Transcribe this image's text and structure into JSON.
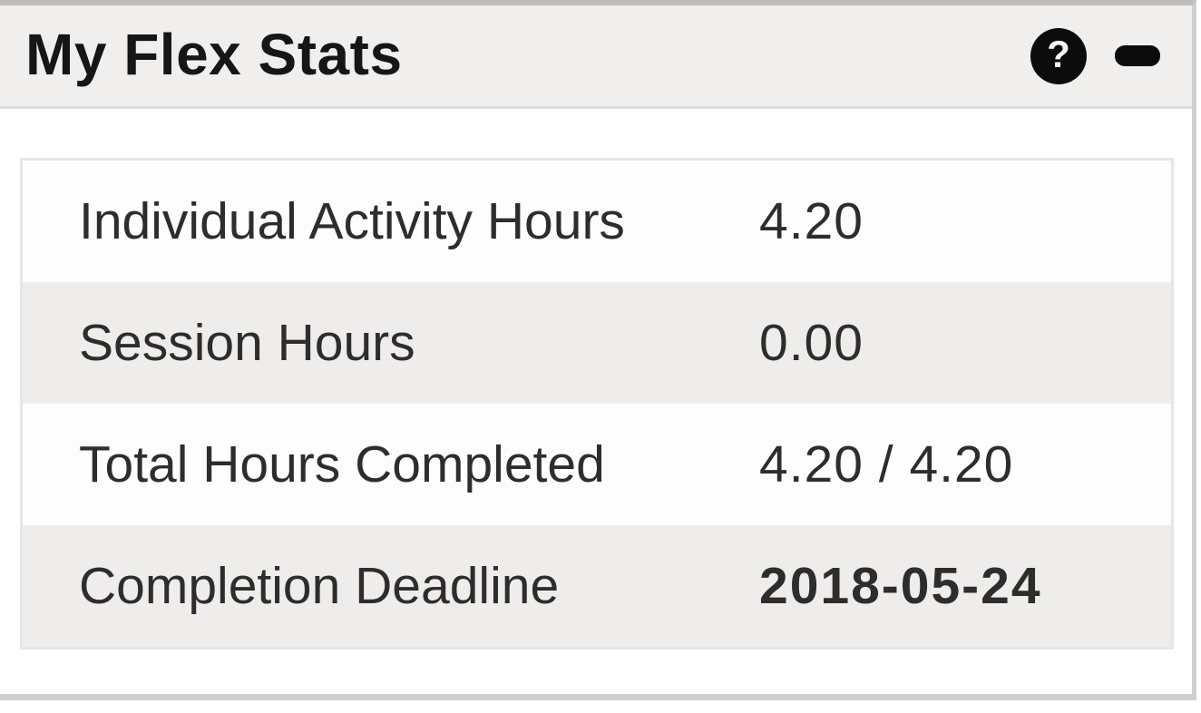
{
  "panel": {
    "title": "My Flex Stats",
    "help_icon_glyph": "?"
  },
  "stats": {
    "rows": [
      {
        "label": "Individual Activity Hours",
        "value": "4.20"
      },
      {
        "label": "Session Hours",
        "value": "0.00"
      },
      {
        "label": "Total Hours Completed",
        "value": "4.20 / 4.20"
      },
      {
        "label": "Completion Deadline",
        "value": "2018-05-24"
      }
    ]
  },
  "colors": {
    "header_bg": "#f0efee",
    "title_text": "#161616",
    "text": "#2e2d2c",
    "row_bg": "#fdfdfd",
    "row_alt_bg": "#eeedec",
    "table_border": "#e7e6e4",
    "border": "#d0cfce",
    "border_strong": "#bfbebd",
    "icon": "#0c0c0c"
  }
}
